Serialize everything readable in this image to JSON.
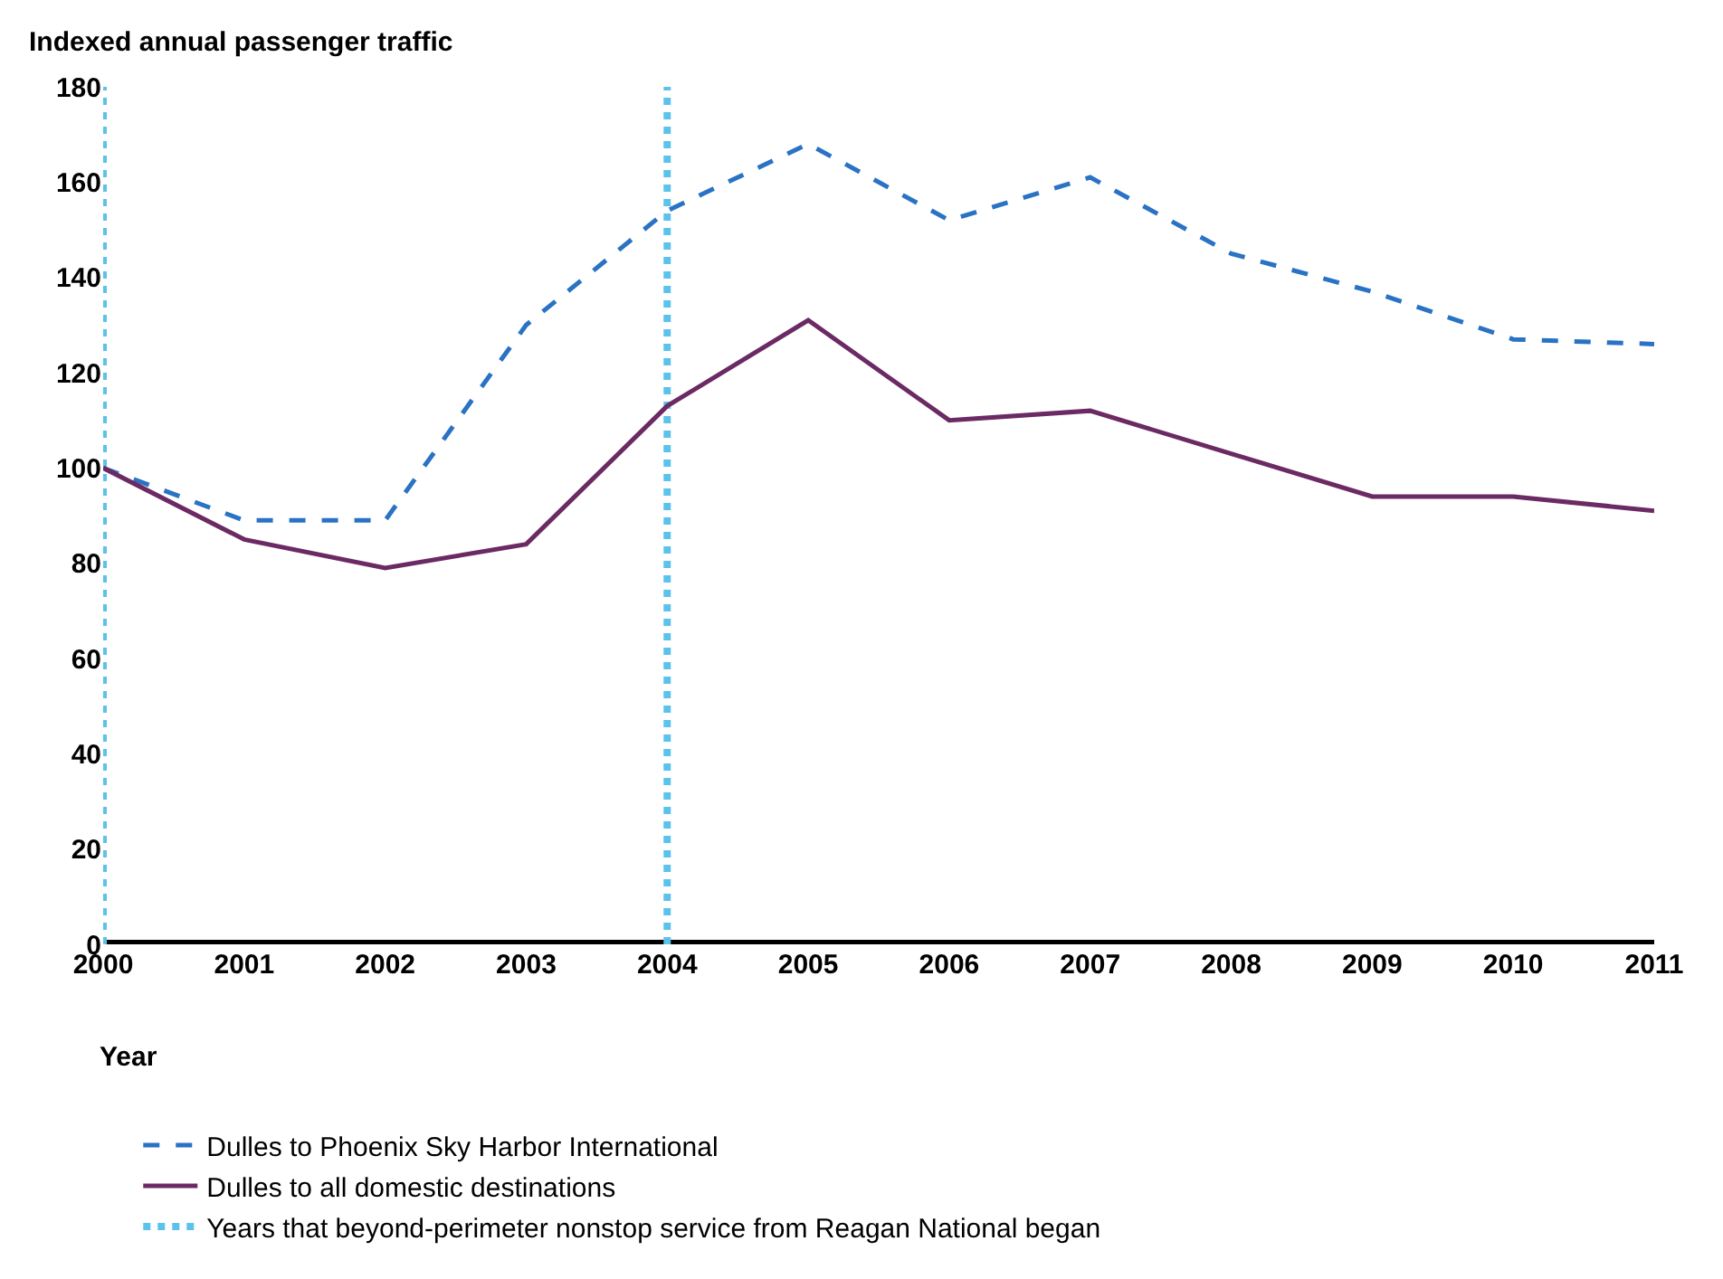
{
  "chart_data": {
    "type": "line",
    "ylabel": "Indexed annual passenger traffic",
    "xlabel": "Year",
    "x": [
      2000,
      2001,
      2002,
      2003,
      2004,
      2005,
      2006,
      2007,
      2008,
      2009,
      2010,
      2011
    ],
    "series": [
      {
        "name": "Dulles to Phoenix Sky Harbor International",
        "color": "#2a72c4",
        "line_style": "dashed",
        "values": [
          100,
          89,
          89,
          130,
          154,
          168,
          152,
          161,
          145,
          137,
          127,
          126
        ]
      },
      {
        "name": "Dulles to all domestic destinations",
        "color": "#6b2a63",
        "line_style": "solid",
        "values": [
          100,
          85,
          79,
          84,
          113,
          131,
          110,
          112,
          103,
          94,
          94,
          91
        ]
      }
    ],
    "ref_lines": [
      {
        "axis": "x",
        "value": 2000,
        "label": "Years that beyond-perimeter nonstop service from Reagan National began",
        "color": "#5bc2ea",
        "line_style": "dotted"
      },
      {
        "axis": "x",
        "value": 2004,
        "color": "#5bc2ea",
        "line_style": "dotted"
      }
    ],
    "xlim": [
      2000,
      2011
    ],
    "xticks": [
      2000,
      2001,
      2002,
      2003,
      2004,
      2005,
      2006,
      2007,
      2008,
      2009,
      2010,
      2011
    ],
    "ylim": [
      0,
      180
    ],
    "yticks": [
      0,
      20,
      40,
      60,
      80,
      100,
      120,
      140,
      160,
      180
    ],
    "grid": false,
    "legend": "bottom",
    "marker": "none"
  }
}
